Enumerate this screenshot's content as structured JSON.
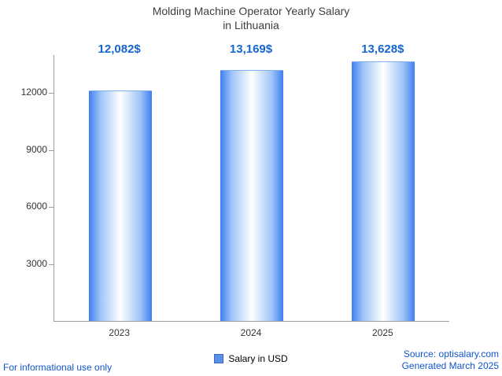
{
  "chart_data": {
    "type": "bar",
    "title": "Molding Machine Operator Yearly Salary in Lithuania",
    "title_line1": "Molding Machine Operator Yearly Salary",
    "title_line2": "in Lithuania",
    "categories": [
      "2023",
      "2024",
      "2025"
    ],
    "values": [
      12082,
      13169,
      13628
    ],
    "value_labels": [
      "12,082$",
      "13,169$",
      "13,628$"
    ],
    "series": [
      {
        "name": "Salary in USD",
        "values": [
          12082,
          13169,
          13628
        ]
      }
    ],
    "xlabel": "",
    "ylabel": "",
    "ylim": [
      0,
      14000
    ],
    "yticks": [
      3000,
      6000,
      9000,
      12000
    ],
    "grid": false,
    "legend_position": "bottom",
    "colors": {
      "bar_edge": "#3d7ef0",
      "bar_center": "#ffffff",
      "value_label": "#1565d0",
      "axis": "#9e9e9e",
      "title": "#3d3d3d",
      "footer_link": "#1155cc",
      "legend_swatch": "#5c8ee6"
    }
  },
  "legend": {
    "label": "Salary in USD"
  },
  "footer": {
    "left": "For informational use only",
    "source": "Source: optisalary.com",
    "generated": "Generated March 2025"
  }
}
